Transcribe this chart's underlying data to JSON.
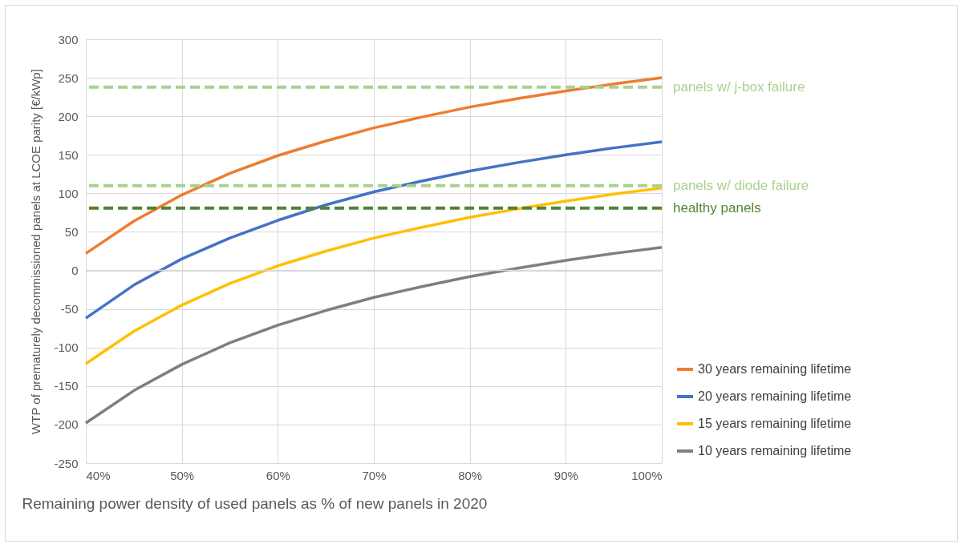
{
  "chart_data": {
    "type": "line",
    "xlabel": "Remaining power density of used panels as % of new panels in 2020",
    "ylabel": "WTP of prematurely decommissioned panels at LCOE parity [€/kWp]",
    "x": [
      40,
      45,
      50,
      55,
      60,
      65,
      70,
      75,
      80,
      85,
      90,
      95,
      100
    ],
    "series": [
      {
        "name": "30 years remaining lifetime",
        "color": "#ed7d31",
        "values": [
          22,
          64,
          98,
          126,
          149,
          168,
          185,
          199,
          212,
          223,
          233,
          242,
          250
        ]
      },
      {
        "name": "20 years remaining lifetime",
        "color": "#4472c4",
        "values": [
          -62,
          -19,
          15,
          42,
          65,
          85,
          102,
          116,
          129,
          140,
          150,
          159,
          167
        ]
      },
      {
        "name": "15 years remaining lifetime",
        "color": "#ffc000",
        "values": [
          -121,
          -79,
          -45,
          -17,
          6,
          25,
          42,
          56,
          69,
          80,
          90,
          99,
          107
        ]
      },
      {
        "name": "10 years remaining lifetime",
        "color": "#7f7f7f",
        "values": [
          -198,
          -156,
          -122,
          -94,
          -71,
          -52,
          -35,
          -21,
          -8,
          3,
          13,
          22,
          30
        ]
      }
    ],
    "ref_lines": [
      {
        "axis": "y",
        "value": 238,
        "label": "panels w/ j-box failure",
        "color": "#a9d18e",
        "line_style": "dashed"
      },
      {
        "axis": "y",
        "value": 110,
        "label": "panels w/ diode failure",
        "color": "#a9d18e",
        "line_style": "dashed"
      },
      {
        "axis": "y",
        "value": 81,
        "label": "healthy panels",
        "color": "#548235",
        "line_style": "dashed"
      }
    ],
    "xlim": [
      40,
      100
    ],
    "xticks": [
      {
        "value": 40,
        "label": "40%"
      },
      {
        "value": 50,
        "label": "50%"
      },
      {
        "value": 60,
        "label": "60%"
      },
      {
        "value": 70,
        "label": "70%"
      },
      {
        "value": 80,
        "label": "80%"
      },
      {
        "value": 90,
        "label": "90%"
      },
      {
        "value": 100,
        "label": "100%"
      }
    ],
    "ylim": [
      -250,
      300
    ],
    "yticks": [
      -250,
      -200,
      -150,
      -100,
      -50,
      0,
      50,
      100,
      150,
      200,
      250,
      300
    ],
    "grid": true,
    "legend": "bottom right",
    "marker": "none",
    "line_style": "solid"
  }
}
